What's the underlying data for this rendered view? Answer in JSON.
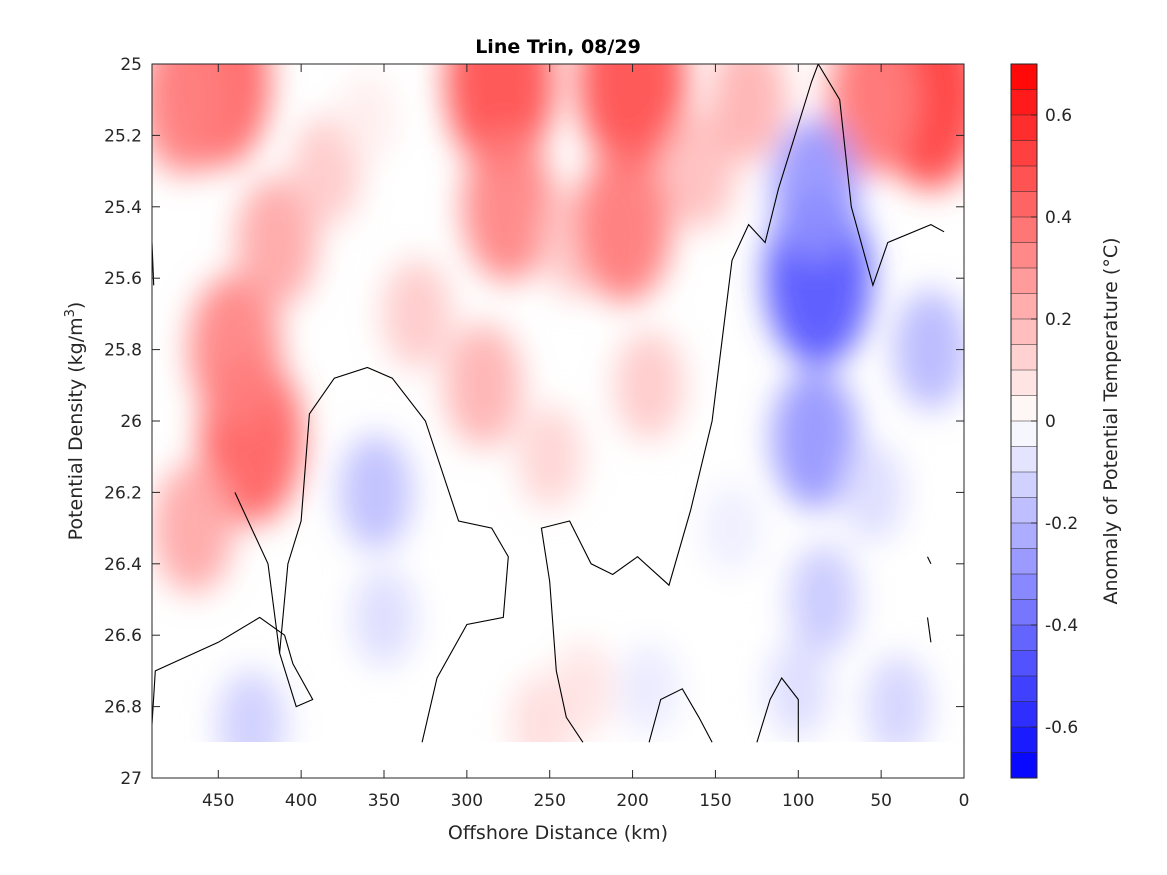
{
  "chart_data": {
    "type": "heatmap",
    "title": "Line Trin, 08/29",
    "xlabel": "Offshore Distance (km)",
    "ylabel": "Potential Density (kg/m",
    "ylabel_superscript": "3",
    "ylabel_close": ")",
    "xlim": [
      490,
      0
    ],
    "ylim": [
      25,
      27
    ],
    "x_ticks": [
      "450",
      "400",
      "350",
      "300",
      "250",
      "200",
      "150",
      "100",
      "50",
      "0"
    ],
    "y_ticks": [
      "25",
      "25.2",
      "25.4",
      "25.6",
      "25.8",
      "26",
      "26.2",
      "26.4",
      "26.6",
      "26.8",
      "27"
    ],
    "colorbar": {
      "label": "Anomaly of Potential Temperature (°C)",
      "range": [
        -0.7,
        0.7
      ],
      "step": 0.05,
      "ticks": [
        "0.6",
        "0.4",
        "0.2",
        "0",
        "-0.2",
        "-0.4",
        "-0.6"
      ]
    },
    "anomaly_features": [
      {
        "x": 450,
        "y": 25.05,
        "value": 0.45
      },
      {
        "x": 470,
        "y": 25.1,
        "value": 0.35
      },
      {
        "x": 430,
        "y": 26.05,
        "value": 0.45
      },
      {
        "x": 440,
        "y": 25.8,
        "value": 0.35
      },
      {
        "x": 415,
        "y": 25.5,
        "value": 0.25
      },
      {
        "x": 465,
        "y": 26.3,
        "value": 0.25
      },
      {
        "x": 385,
        "y": 25.3,
        "value": 0.15
      },
      {
        "x": 360,
        "y": 25.15,
        "value": 0.05
      },
      {
        "x": 330,
        "y": 25.7,
        "value": 0.15
      },
      {
        "x": 280,
        "y": 25.05,
        "value": 0.5
      },
      {
        "x": 275,
        "y": 25.4,
        "value": 0.35
      },
      {
        "x": 290,
        "y": 25.9,
        "value": 0.22
      },
      {
        "x": 250,
        "y": 26.1,
        "value": 0.12
      },
      {
        "x": 235,
        "y": 25.5,
        "value": 0.15
      },
      {
        "x": 200,
        "y": 25.05,
        "value": 0.5
      },
      {
        "x": 205,
        "y": 25.45,
        "value": 0.38
      },
      {
        "x": 190,
        "y": 25.9,
        "value": 0.15
      },
      {
        "x": 160,
        "y": 25.3,
        "value": 0.18
      },
      {
        "x": 130,
        "y": 25.1,
        "value": 0.22
      },
      {
        "x": 35,
        "y": 25.02,
        "value": 0.6
      },
      {
        "x": 20,
        "y": 25.1,
        "value": 0.5
      },
      {
        "x": 55,
        "y": 25.1,
        "value": 0.35
      },
      {
        "x": 255,
        "y": 26.85,
        "value": 0.1
      },
      {
        "x": 230,
        "y": 26.75,
        "value": 0.08
      },
      {
        "x": 355,
        "y": 26.2,
        "value": -0.18
      },
      {
        "x": 350,
        "y": 26.55,
        "value": -0.1
      },
      {
        "x": 430,
        "y": 26.85,
        "value": -0.14
      },
      {
        "x": 88,
        "y": 25.6,
        "value": -0.48
      },
      {
        "x": 90,
        "y": 25.35,
        "value": -0.3
      },
      {
        "x": 90,
        "y": 26.05,
        "value": -0.3
      },
      {
        "x": 85,
        "y": 26.5,
        "value": -0.15
      },
      {
        "x": 100,
        "y": 26.75,
        "value": -0.1
      },
      {
        "x": 55,
        "y": 26.2,
        "value": -0.1
      },
      {
        "x": 20,
        "y": 25.8,
        "value": -0.2
      },
      {
        "x": 40,
        "y": 26.8,
        "value": -0.12
      },
      {
        "x": 140,
        "y": 26.3,
        "value": -0.05
      },
      {
        "x": 190,
        "y": 26.75,
        "value": -0.06
      }
    ],
    "data_depth_limit": 26.9,
    "zero_contours": [
      [
        [
          490,
          26.85
        ],
        [
          488,
          26.7
        ],
        [
          450,
          26.62
        ],
        [
          425,
          26.55
        ],
        [
          410,
          26.6
        ],
        [
          405,
          26.68
        ],
        [
          393,
          26.78
        ],
        [
          403,
          26.8
        ],
        [
          413,
          26.65
        ],
        [
          420,
          26.4
        ],
        [
          440,
          26.2
        ]
      ],
      [
        [
          413,
          26.65
        ],
        [
          408,
          26.4
        ],
        [
          400,
          26.28
        ],
        [
          395,
          25.98
        ],
        [
          380,
          25.88
        ],
        [
          360,
          25.85
        ],
        [
          345,
          25.88
        ],
        [
          325,
          26.0
        ],
        [
          305,
          26.28
        ],
        [
          285,
          26.3
        ],
        [
          275,
          26.38
        ],
        [
          278,
          26.55
        ],
        [
          300,
          26.57
        ],
        [
          318,
          26.72
        ],
        [
          327,
          26.9
        ]
      ],
      [
        [
          230,
          26.9
        ],
        [
          240,
          26.83
        ],
        [
          246,
          26.7
        ],
        [
          250,
          26.45
        ],
        [
          255,
          26.3
        ],
        [
          238,
          26.28
        ],
        [
          225,
          26.4
        ],
        [
          212,
          26.43
        ],
        [
          197,
          26.38
        ],
        [
          178,
          26.46
        ],
        [
          165,
          26.25
        ],
        [
          152,
          26.0
        ],
        [
          148,
          25.85
        ],
        [
          140,
          25.55
        ],
        [
          130,
          25.45
        ],
        [
          120,
          25.5
        ],
        [
          112,
          25.35
        ],
        [
          102,
          25.2
        ],
        [
          92,
          25.05
        ],
        [
          88,
          25.0
        ],
        [
          75,
          25.1
        ],
        [
          68,
          25.4
        ],
        [
          55,
          25.62
        ],
        [
          46,
          25.5
        ],
        [
          20,
          25.45
        ],
        [
          12,
          25.47
        ]
      ],
      [
        [
          190,
          26.9
        ],
        [
          183,
          26.78
        ],
        [
          170,
          26.75
        ],
        [
          160,
          26.83
        ],
        [
          152,
          26.9
        ]
      ],
      [
        [
          125,
          26.9
        ],
        [
          117,
          26.78
        ],
        [
          110,
          26.72
        ],
        [
          100,
          26.78
        ],
        [
          100,
          26.9
        ]
      ],
      [
        [
          490,
          25.5
        ],
        [
          489,
          25.62
        ]
      ],
      [
        [
          22,
          26.38
        ],
        [
          20,
          26.4
        ]
      ],
      [
        [
          22,
          26.55
        ],
        [
          20,
          26.62
        ]
      ]
    ]
  }
}
